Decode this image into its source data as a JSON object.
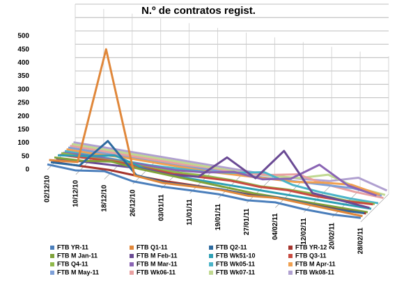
{
  "chart_data": {
    "type": "line3d",
    "title": "N.º de contratos regist.",
    "categories": [
      "02/12/10",
      "10/12/10",
      "18/12/10",
      "26/12/10",
      "03/01/11",
      "11/01/11",
      "19/01/11",
      "27/01/11",
      "04/02/11",
      "12/02/11",
      "20/02/11",
      "28/02/11"
    ],
    "ylim": [
      0,
      500
    ],
    "yticks": [
      0,
      50,
      100,
      150,
      200,
      250,
      300,
      350,
      400,
      450,
      500
    ],
    "grid": true,
    "series": [
      {
        "name": "FTB YR-11",
        "color": "#4a7ebb",
        "values": [
          20,
          15,
          30,
          10,
          8,
          12,
          15,
          10,
          20,
          12,
          10,
          15
        ]
      },
      {
        "name": "FTB Q1-11",
        "color": "#e0873a",
        "values": [
          30,
          40,
          480,
          25,
          15,
          20,
          25,
          20,
          30,
          25,
          20,
          15
        ]
      },
      {
        "name": "FTB Q2-11",
        "color": "#2d6a9f",
        "values": [
          15,
          20,
          130,
          20,
          10,
          15,
          20,
          15,
          25,
          20,
          15,
          20
        ]
      },
      {
        "name": "FTB YR-12",
        "color": "#a5342d",
        "values": [
          10,
          12,
          15,
          10,
          8,
          10,
          12,
          10,
          15,
          12,
          10,
          12
        ]
      },
      {
        "name": "FTB M Jan-11",
        "color": "#7fa23a",
        "values": [
          20,
          25,
          40,
          30,
          25,
          20,
          15,
          10,
          10,
          10,
          10,
          10
        ]
      },
      {
        "name": "FTB M Feb-11",
        "color": "#6a4a94",
        "values": [
          10,
          15,
          20,
          25,
          20,
          30,
          120,
          60,
          180,
          40,
          30,
          20
        ]
      },
      {
        "name": "FTB Wk51-10",
        "color": "#2d9fb4",
        "values": [
          15,
          30,
          50,
          20,
          10,
          10,
          10,
          10,
          10,
          10,
          10,
          10
        ]
      },
      {
        "name": "FTB Q3-11",
        "color": "#c84a40",
        "values": [
          10,
          15,
          20,
          15,
          10,
          15,
          20,
          15,
          20,
          15,
          15,
          20
        ]
      },
      {
        "name": "FTB Q4-11",
        "color": "#8fb84a",
        "values": [
          10,
          10,
          15,
          10,
          10,
          15,
          15,
          10,
          15,
          15,
          10,
          15
        ]
      },
      {
        "name": "FTB M Mar-11",
        "color": "#8a64b4",
        "values": [
          5,
          10,
          10,
          10,
          10,
          20,
          40,
          30,
          50,
          120,
          60,
          40
        ]
      },
      {
        "name": "FTB Wk05-11",
        "color": "#4ab4c8",
        "values": [
          5,
          5,
          5,
          5,
          10,
          15,
          30,
          50,
          20,
          10,
          5,
          5
        ]
      },
      {
        "name": "FTB M Apr-11",
        "color": "#f0a050",
        "values": [
          5,
          5,
          10,
          10,
          10,
          10,
          15,
          20,
          25,
          40,
          50,
          30
        ]
      },
      {
        "name": "FTB M May-11",
        "color": "#7ea0d8",
        "values": [
          5,
          5,
          5,
          5,
          5,
          10,
          10,
          15,
          20,
          25,
          30,
          20
        ]
      },
      {
        "name": "FTB Wk06-11",
        "color": "#e8a0a0",
        "values": [
          5,
          5,
          5,
          5,
          5,
          5,
          10,
          20,
          40,
          20,
          10,
          5
        ]
      },
      {
        "name": "FTB Wk07-11",
        "color": "#c0d890",
        "values": [
          5,
          5,
          5,
          5,
          5,
          5,
          5,
          10,
          20,
          50,
          20,
          10
        ]
      },
      {
        "name": "FTB Wk08-11",
        "color": "#b0a0d0",
        "values": [
          5,
          5,
          5,
          5,
          5,
          5,
          5,
          5,
          10,
          20,
          50,
          20
        ]
      }
    ]
  }
}
